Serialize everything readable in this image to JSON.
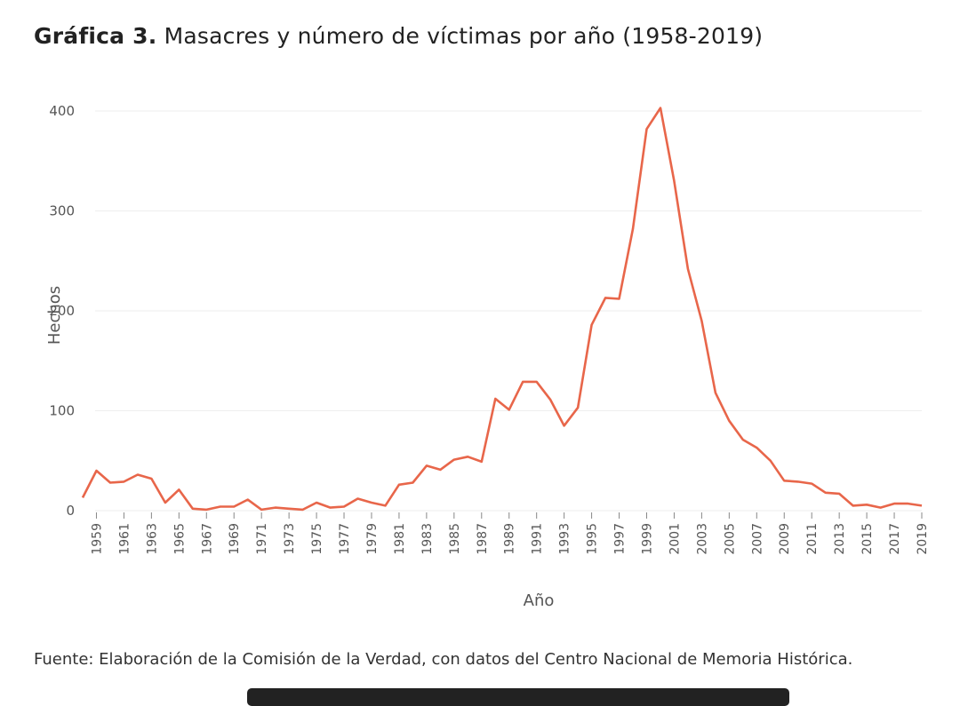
{
  "title": {
    "lead": "Gráfica 3.",
    "text": "Masacres y número de víctimas por año (1958-2019)"
  },
  "source": "Fuente: Elaboración de la Comisión de la Verdad, con datos del Centro Nacional de Memoria Histórica.",
  "colors": {
    "line": "#e8664a",
    "grid": "#eeeeee",
    "text": "#555555"
  },
  "chart_data": {
    "type": "line",
    "xlabel": "Año",
    "ylabel": "Hechos",
    "ylim": [
      0,
      400
    ],
    "yticks": [
      0,
      100,
      200,
      300,
      400
    ],
    "xticks": [
      1959,
      1961,
      1963,
      1965,
      1967,
      1969,
      1971,
      1973,
      1975,
      1977,
      1979,
      1981,
      1983,
      1985,
      1987,
      1989,
      1991,
      1993,
      1995,
      1997,
      1999,
      2001,
      2003,
      2005,
      2007,
      2009,
      2011,
      2013,
      2015,
      2017,
      2019
    ],
    "grid": true,
    "series": [
      {
        "x": [
          1958,
          1959,
          1960,
          1961,
          1962,
          1963,
          1964,
          1965,
          1966,
          1967,
          1968,
          1969,
          1970,
          1971,
          1972,
          1973,
          1974,
          1975,
          1976,
          1977,
          1978,
          1979,
          1980,
          1981,
          1982,
          1983,
          1984,
          1985,
          1986,
          1987,
          1988,
          1989,
          1990,
          1991,
          1992,
          1993,
          1994,
          1995,
          1996,
          1997,
          1998,
          1999,
          2000,
          2001,
          2002,
          2003,
          2004,
          2005,
          2006,
          2007,
          2008,
          2009,
          2010,
          2011,
          2012,
          2013,
          2014,
          2015,
          2016,
          2017,
          2018,
          2019
        ],
        "values": [
          13,
          40,
          28,
          29,
          36,
          32,
          8,
          21,
          2,
          1,
          4,
          4,
          11,
          1,
          3,
          2,
          1,
          8,
          3,
          4,
          12,
          8,
          5,
          26,
          28,
          45,
          41,
          51,
          54,
          49,
          112,
          101,
          129,
          129,
          111,
          85,
          103,
          186,
          213,
          212,
          282,
          382,
          403,
          330,
          242,
          190,
          118,
          90,
          71,
          63,
          50,
          30,
          29,
          27,
          18,
          17,
          5,
          6,
          3,
          7,
          7,
          5
        ]
      }
    ]
  }
}
